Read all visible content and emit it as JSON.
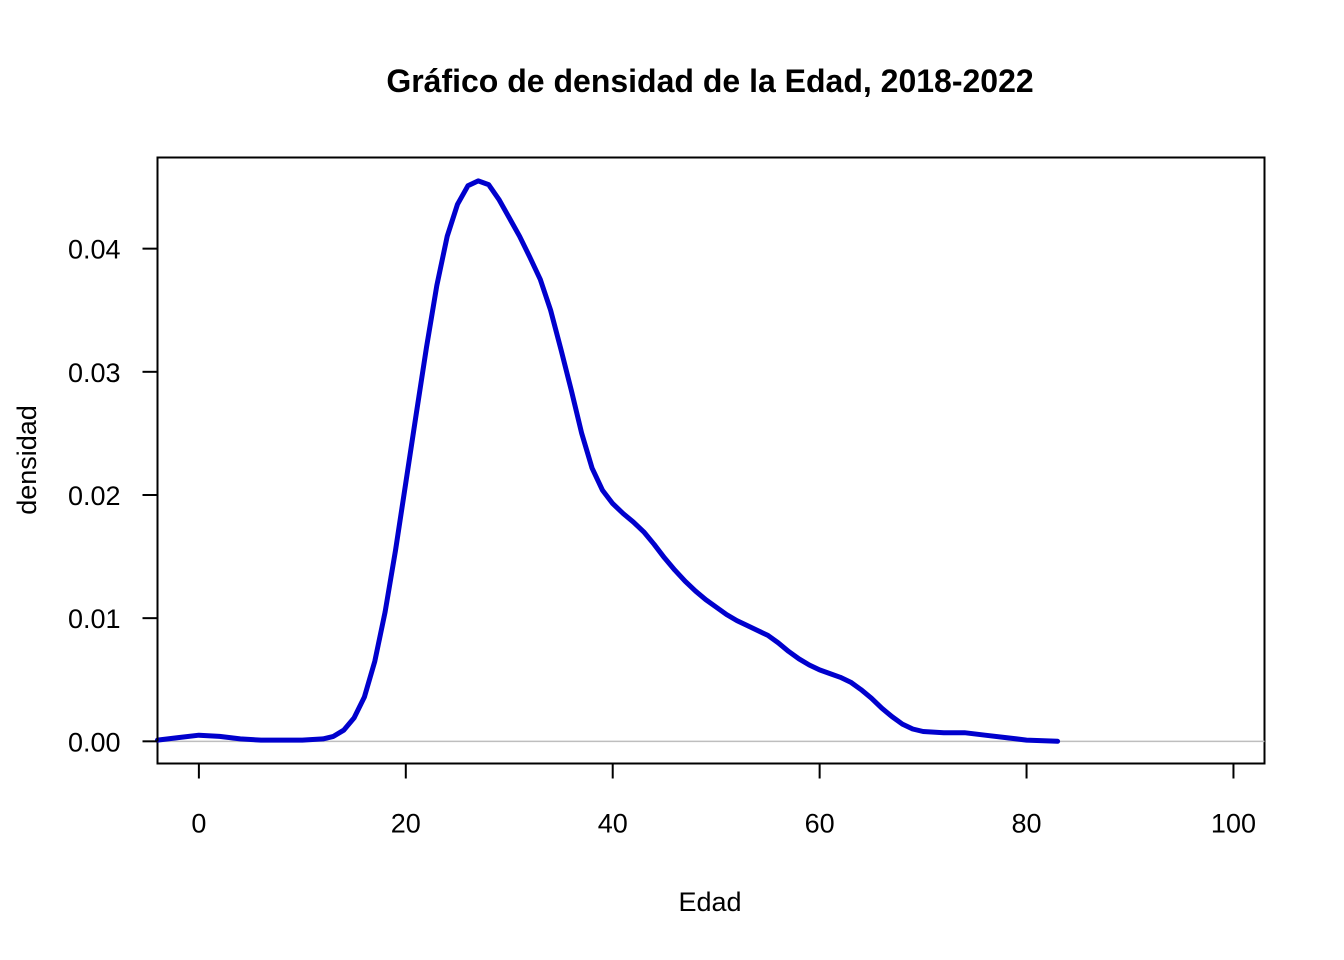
{
  "chart_data": {
    "type": "line",
    "title": "Gráfico de densidad de la Edad, 2018-2022",
    "xlabel": "Edad",
    "ylabel": "densidad",
    "xlim": [
      -4,
      103
    ],
    "ylim": [
      -0.0018,
      0.0474
    ],
    "x_ticks": [
      0,
      20,
      40,
      60,
      80,
      100
    ],
    "x_tick_labels": [
      "0",
      "20",
      "40",
      "60",
      "80",
      "100"
    ],
    "y_ticks": [
      0,
      0.01,
      0.02,
      0.03,
      0.04
    ],
    "y_tick_labels": [
      "0.00",
      "0.01",
      "0.02",
      "0.03",
      "0.04"
    ],
    "zero_line": true,
    "grid": false,
    "series": [
      {
        "color": "#0000cd",
        "points": [
          [
            -4,
            0.0001
          ],
          [
            -2,
            0.0003
          ],
          [
            0,
            0.0005
          ],
          [
            2,
            0.0004
          ],
          [
            4,
            0.0002
          ],
          [
            6,
            0.0001
          ],
          [
            8,
            0.0001
          ],
          [
            10,
            0.0001
          ],
          [
            12,
            0.0002
          ],
          [
            13,
            0.0004
          ],
          [
            14,
            0.0009
          ],
          [
            15,
            0.0019
          ],
          [
            16,
            0.0036
          ],
          [
            17,
            0.0065
          ],
          [
            18,
            0.0105
          ],
          [
            19,
            0.0155
          ],
          [
            20,
            0.021
          ],
          [
            21,
            0.0265
          ],
          [
            22,
            0.032
          ],
          [
            23,
            0.037
          ],
          [
            24,
            0.041
          ],
          [
            25,
            0.0436
          ],
          [
            26,
            0.0451
          ],
          [
            27,
            0.0455
          ],
          [
            28,
            0.0452
          ],
          [
            29,
            0.044
          ],
          [
            30,
            0.0425
          ],
          [
            31,
            0.041
          ],
          [
            32,
            0.0393
          ],
          [
            33,
            0.0375
          ],
          [
            34,
            0.035
          ],
          [
            35,
            0.0318
          ],
          [
            36,
            0.0285
          ],
          [
            37,
            0.025
          ],
          [
            38,
            0.0222
          ],
          [
            39,
            0.0204
          ],
          [
            40,
            0.0193
          ],
          [
            41,
            0.0185
          ],
          [
            42,
            0.0178
          ],
          [
            43,
            0.017
          ],
          [
            44,
            0.016
          ],
          [
            45,
            0.0149
          ],
          [
            46,
            0.0139
          ],
          [
            47,
            0.013
          ],
          [
            48,
            0.0122
          ],
          [
            49,
            0.0115
          ],
          [
            50,
            0.0109
          ],
          [
            51,
            0.0103
          ],
          [
            52,
            0.0098
          ],
          [
            53,
            0.0094
          ],
          [
            54,
            0.009
          ],
          [
            55,
            0.0086
          ],
          [
            56,
            0.008
          ],
          [
            57,
            0.0073
          ],
          [
            58,
            0.0067
          ],
          [
            59,
            0.0062
          ],
          [
            60,
            0.0058
          ],
          [
            61,
            0.0055
          ],
          [
            62,
            0.0052
          ],
          [
            63,
            0.0048
          ],
          [
            64,
            0.0042
          ],
          [
            65,
            0.0035
          ],
          [
            66,
            0.0027
          ],
          [
            67,
            0.002
          ],
          [
            68,
            0.0014
          ],
          [
            69,
            0.001
          ],
          [
            70,
            0.0008
          ],
          [
            72,
            0.0007
          ],
          [
            74,
            0.0007
          ],
          [
            76,
            0.0005
          ],
          [
            78,
            0.0003
          ],
          [
            80,
            0.0001
          ],
          [
            83,
            0.0
          ]
        ]
      }
    ]
  }
}
